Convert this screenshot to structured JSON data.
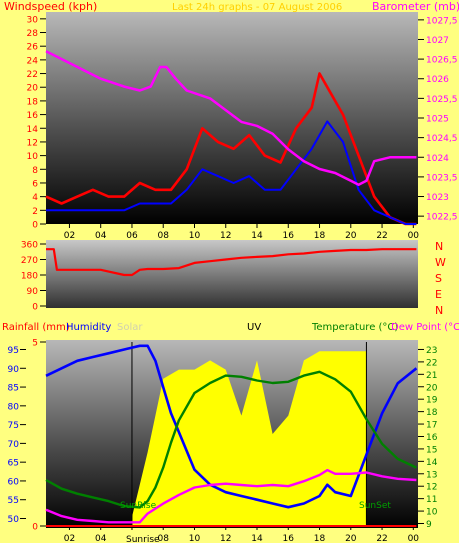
{
  "colors": {
    "background": "#ffff80",
    "windspeed": "#ff0000",
    "windavg": "#0000ff",
    "barometer": "#ff00ff",
    "direction": "#ff0000",
    "rainfall": "#ff0000",
    "humidity": "#0000ff",
    "solar": "#ffff00",
    "uv": "#000000",
    "temperature": "#008000",
    "dewpoint": "#ff00ff",
    "solar_label": "#d0d0b0",
    "header_wind": "#ff0000",
    "header_top_title": "#ffd000"
  },
  "header": {
    "windspeed_label": "Windspeed (kph)",
    "barometer_label": "Barometer (mb)",
    "top_title": "Last 24h graphs - 07 August 2006"
  },
  "compass": [
    "N",
    "W",
    "S",
    "E",
    "N"
  ],
  "legend2": {
    "rainfall": "Rainfall (mm)",
    "humidity": "Humidity",
    "solar": "Solar",
    "uv": "UV",
    "temperature": "Temperature (°C)",
    "dewpoint": "Dew Point (°C)"
  },
  "annotations": {
    "sunrise_axis": "Sunrise",
    "sunrise_plot": "SunRise",
    "sunset_plot": "SunSet"
  },
  "chart_data": [
    {
      "type": "line",
      "title": "Last 24h graphs - 07 August 2006",
      "x_ticks": [
        "02",
        "04",
        "06",
        "08",
        "10",
        "12",
        "14",
        "16",
        "18",
        "20",
        "22",
        "00"
      ],
      "x_range": [
        0.5,
        24.3
      ],
      "y_left_label": "Windspeed (kph)",
      "y_left_range": [
        0,
        31
      ],
      "y_left_ticks": [
        0,
        2,
        4,
        6,
        8,
        10,
        12,
        14,
        16,
        18,
        20,
        22,
        24,
        26,
        28,
        30
      ],
      "y_right_label": "Barometer (mb)",
      "y_right_range": [
        1022.3,
        1027.7
      ],
      "y_right_ticks": [
        "1022,5",
        "1023",
        "1023,5",
        "1024",
        "1024,5",
        "1025",
        "1025,5",
        "1026",
        "1026,5",
        "1027",
        "1027,5"
      ],
      "series": [
        {
          "name": "Windspeed",
          "axis": "left",
          "x": [
            0.5,
            1.5,
            2.5,
            3.5,
            4.5,
            5.5,
            6.5,
            7.5,
            8.5,
            9.5,
            10.5,
            11.5,
            12.5,
            13.5,
            14.5,
            15.5,
            16.5,
            17.5,
            18.0,
            18.5,
            19.5,
            20.5,
            21.5,
            22.5,
            23.5,
            24.2
          ],
          "y": [
            4,
            3,
            4,
            5,
            4,
            4,
            6,
            5,
            5,
            8,
            14,
            12,
            11,
            13,
            10,
            9,
            14,
            17,
            22,
            20,
            16,
            10,
            4,
            1,
            0,
            0
          ]
        },
        {
          "name": "Wind average",
          "axis": "left",
          "x": [
            0.5,
            1.5,
            2.5,
            3.5,
            4.5,
            5.5,
            6.5,
            7.5,
            8.5,
            9.5,
            10.5,
            11.5,
            12.5,
            13.5,
            14.5,
            15.5,
            16.5,
            17.5,
            18.5,
            19.5,
            20.5,
            21.5,
            22.5,
            23.5,
            24.2
          ],
          "y": [
            2,
            2,
            2,
            2,
            2,
            2,
            3,
            3,
            3,
            5,
            8,
            7,
            6,
            7,
            5,
            5,
            8,
            11,
            15,
            12,
            5,
            2,
            1,
            0,
            0
          ]
        },
        {
          "name": "Barometer",
          "axis": "right",
          "x": [
            0.5,
            2.0,
            4.0,
            5.5,
            6.5,
            7.2,
            7.8,
            8.2,
            8.8,
            9.5,
            11.0,
            12.0,
            13.0,
            14.0,
            15.0,
            16.0,
            17.0,
            18.0,
            19.0,
            20.0,
            20.5,
            21.0,
            21.5,
            22.5,
            23.5,
            24.2
          ],
          "y": [
            1026.7,
            1026.4,
            1026.0,
            1025.8,
            1025.7,
            1025.8,
            1026.3,
            1026.3,
            1026.0,
            1025.7,
            1025.5,
            1025.2,
            1024.9,
            1024.8,
            1024.6,
            1024.2,
            1023.9,
            1023.7,
            1023.6,
            1023.4,
            1023.3,
            1023.4,
            1023.9,
            1024.0,
            1024.0,
            1024.0
          ]
        }
      ]
    },
    {
      "type": "line",
      "y_range": [
        0,
        360
      ],
      "y_ticks": [
        0,
        90,
        180,
        270,
        360
      ],
      "series": [
        {
          "name": "Wind direction",
          "x": [
            0.5,
            1.0,
            1.2,
            2.0,
            4.0,
            5.5,
            6.0,
            6.5,
            7.0,
            8.0,
            9.0,
            10.0,
            11.0,
            12.0,
            13.0,
            14.0,
            15.0,
            16.0,
            17.0,
            18.0,
            19.0,
            20.0,
            21.0,
            22.0,
            23.0,
            24.2
          ],
          "y": [
            330,
            330,
            210,
            210,
            210,
            180,
            180,
            210,
            215,
            215,
            220,
            250,
            260,
            270,
            280,
            285,
            290,
            300,
            305,
            315,
            320,
            325,
            325,
            330,
            330,
            330
          ]
        }
      ]
    },
    {
      "type": "line",
      "y_left_label": "Humidity",
      "y_left_range": [
        48,
        97
      ],
      "y_left_ticks": [
        50,
        55,
        60,
        65,
        70,
        75,
        80,
        85,
        90,
        95
      ],
      "y_rain_range": [
        0,
        5
      ],
      "y_rain_ticks": [
        0,
        5
      ],
      "y_right_label": "Temperature (°C)",
      "y_right_range": [
        8.8,
        23.6
      ],
      "y_right_ticks": [
        9,
        10,
        11,
        12,
        13,
        14,
        15,
        16,
        17,
        18,
        19,
        20,
        21,
        22,
        23
      ],
      "sunrise_hour": 6.0,
      "sunset_hour": 21.0,
      "series": [
        {
          "name": "Humidity",
          "axis": "left",
          "x": [
            0.5,
            1.5,
            2.5,
            3.5,
            4.5,
            5.5,
            6.5,
            7.0,
            7.5,
            8.0,
            8.5,
            9.0,
            10.0,
            11.0,
            12.0,
            13.0,
            14.0,
            15.0,
            16.0,
            17.0,
            18.0,
            18.5,
            19.0,
            20.0,
            21.0,
            22.0,
            23.0,
            24.2
          ],
          "y": [
            88,
            90,
            92,
            93,
            94,
            95,
            96,
            96,
            92,
            85,
            78,
            73,
            63,
            59,
            57,
            56,
            55,
            54,
            53,
            54,
            56,
            59,
            57,
            56,
            67,
            78,
            86,
            90
          ]
        },
        {
          "name": "Solar",
          "axis": "solar",
          "x": [
            6.0,
            7.0,
            8.0,
            9.0,
            10.0,
            11.0,
            12.0,
            13.0,
            14.0,
            15.0,
            16.0,
            17.0,
            18.0,
            19.0,
            20.0,
            21.0
          ],
          "y": [
            0.05,
            0.4,
            0.8,
            0.85,
            0.85,
            0.9,
            0.85,
            0.6,
            0.9,
            0.5,
            0.6,
            0.9,
            0.95,
            0.95,
            0.95,
            0.95
          ]
        },
        {
          "name": "Temperature",
          "axis": "right",
          "x": [
            0.5,
            1.5,
            2.5,
            3.5,
            4.5,
            5.5,
            6.5,
            7.0,
            7.5,
            8.0,
            8.5,
            9.0,
            10.0,
            11.0,
            12.0,
            13.0,
            14.0,
            15.0,
            16.0,
            17.0,
            18.0,
            18.5,
            19.0,
            20.0,
            21.0,
            22.0,
            23.0,
            24.2
          ],
          "y": [
            12.5,
            11.8,
            11.4,
            11.1,
            10.8,
            10.4,
            10.3,
            10.8,
            11.9,
            13.5,
            15.5,
            17.3,
            19.5,
            20.3,
            20.9,
            20.8,
            20.5,
            20.3,
            20.4,
            20.9,
            21.2,
            20.9,
            20.6,
            19.6,
            17.4,
            15.4,
            14.2,
            13.5
          ]
        },
        {
          "name": "Dew Point",
          "axis": "right",
          "x": [
            0.5,
            1.5,
            2.5,
            3.5,
            4.5,
            5.5,
            6.5,
            7.0,
            7.5,
            8.0,
            9.0,
            10.0,
            11.0,
            12.0,
            13.0,
            14.0,
            15.0,
            16.0,
            17.0,
            18.0,
            18.5,
            19.0,
            20.0,
            21.0,
            22.0,
            23.0,
            24.2
          ],
          "y": [
            10.1,
            9.6,
            9.3,
            9.2,
            9.1,
            9.1,
            9.1,
            9.8,
            10.2,
            10.6,
            11.3,
            11.9,
            12.1,
            12.2,
            12.1,
            12.0,
            12.1,
            12.0,
            12.4,
            12.9,
            13.3,
            13.0,
            13.0,
            13.1,
            12.8,
            12.6,
            12.5
          ]
        },
        {
          "name": "Rainfall",
          "axis": "rain",
          "x": [
            0.5,
            24.2
          ],
          "y": [
            0,
            0
          ]
        }
      ]
    }
  ]
}
